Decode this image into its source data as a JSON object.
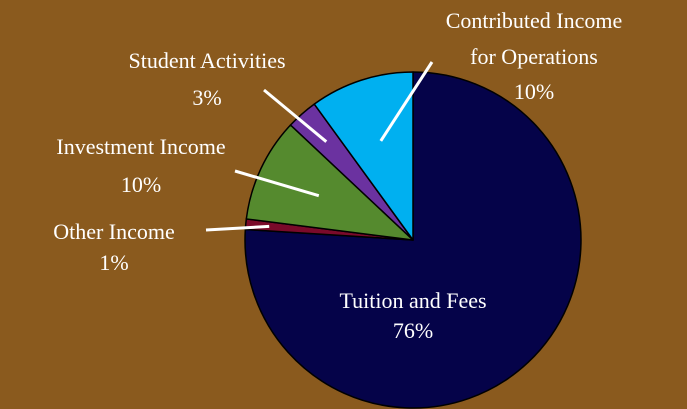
{
  "chart_data": {
    "type": "pie",
    "title": "",
    "categories": [
      "Tuition and Fees",
      "Other Income",
      "Investment Income",
      "Student Activities",
      "Contributed Income for Operations"
    ],
    "values": [
      76,
      1,
      10,
      3,
      10
    ],
    "value_labels": [
      "76%",
      "1%",
      "10%",
      "3%",
      "10%"
    ],
    "label_lines": [
      [
        "Tuition and Fees"
      ],
      [
        "Other Income"
      ],
      [
        "Investment Income"
      ],
      [
        "Student Activities"
      ],
      [
        "Contributed Income",
        "for Operations"
      ]
    ],
    "colors": [
      "#050349",
      "#7a0a2a",
      "#558a2e",
      "#6b32a0",
      "#00b0f0"
    ],
    "background": "#8a5a1e",
    "start": "12 o'clock",
    "direction": "clockwise",
    "legend": "none"
  }
}
